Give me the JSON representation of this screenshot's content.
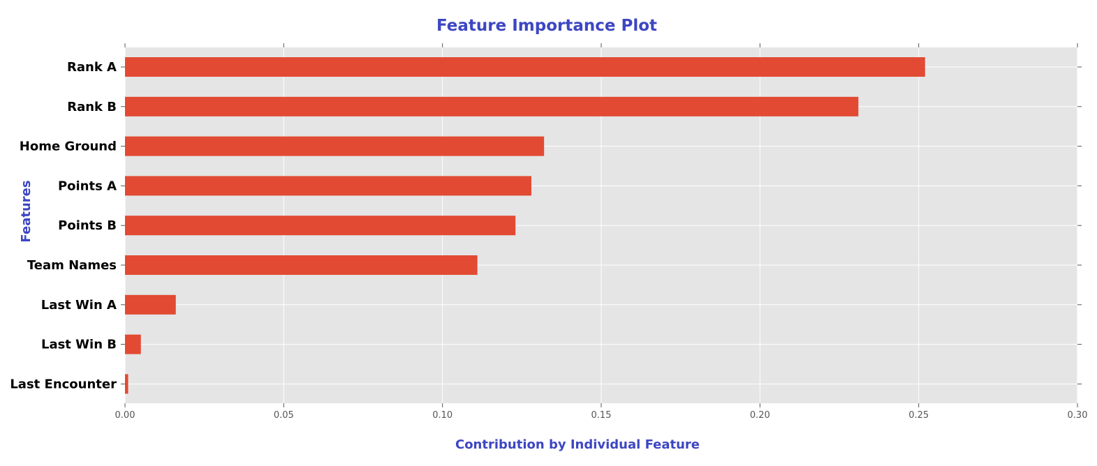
{
  "colors": {
    "bar": "#E24A33",
    "plot_background": "#E5E5E5",
    "grid": "#FFFFFF",
    "title": "#3D46C2",
    "tick_text": "#555555",
    "category_text": "#000000"
  },
  "chart_data": {
    "type": "bar",
    "orientation": "horizontal",
    "title": "Feature Importance Plot",
    "xlabel": "Contribution by Individual Feature",
    "ylabel": "Features",
    "categories": [
      "Rank A",
      "Rank B",
      "Home Ground",
      "Points A",
      "Points B",
      "Team Names",
      "Last Win A",
      "Last Win B",
      "Last Encounter"
    ],
    "values": [
      0.252,
      0.231,
      0.132,
      0.128,
      0.123,
      0.111,
      0.016,
      0.005,
      0.001
    ],
    "xlim": [
      0.0,
      0.3
    ],
    "xticks": [
      "0.00",
      "0.05",
      "0.10",
      "0.15",
      "0.20",
      "0.25",
      "0.30"
    ],
    "grid": true,
    "legend": "none"
  }
}
